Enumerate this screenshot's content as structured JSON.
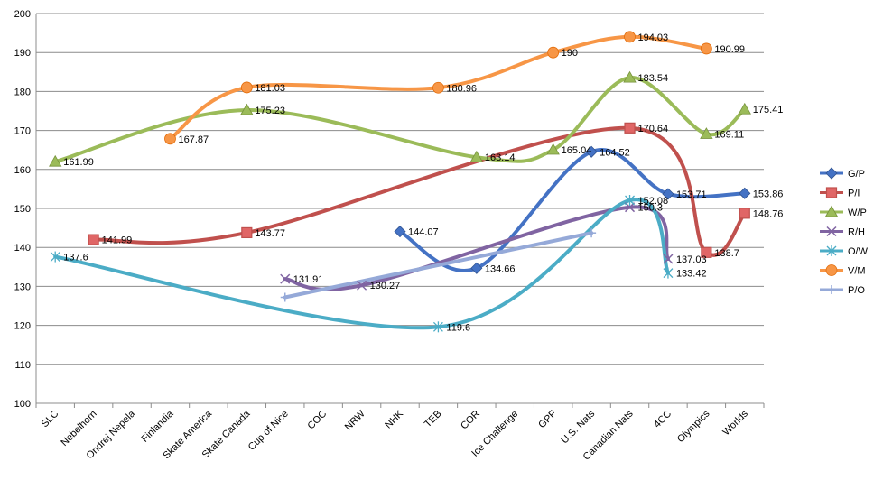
{
  "chart_data": {
    "type": "line",
    "categories": [
      "SLC",
      "Nebelhorn",
      "Ondrej Nepela",
      "Finlandia",
      "Skate America",
      "Skate Canada",
      "Cup of Nice",
      "COC",
      "NRW",
      "NHK",
      "TEB",
      "COR",
      "Ice Challenge",
      "GPF",
      "U.S. Nats",
      "Canadian Nats",
      "4CC",
      "Olympics",
      "Worlds"
    ],
    "ylim": [
      100,
      200
    ],
    "yticks": [
      100,
      110,
      120,
      130,
      140,
      150,
      160,
      170,
      180,
      190,
      200
    ],
    "grid": "horizontal",
    "legend_position": "right",
    "smooth": true,
    "series": [
      {
        "name": "G/P",
        "color": "#4472C4",
        "marker": "diamond",
        "values": [
          null,
          null,
          null,
          null,
          null,
          null,
          null,
          null,
          null,
          144.07,
          null,
          134.66,
          null,
          null,
          164.52,
          null,
          153.71,
          null,
          153.86
        ],
        "labels": [
          "144.07",
          "134.66",
          "164.52",
          "153.71",
          "153.86"
        ]
      },
      {
        "name": "P/I",
        "color": "#C0504D",
        "marker": "square",
        "values": [
          null,
          141.99,
          null,
          null,
          null,
          143.77,
          null,
          null,
          null,
          null,
          null,
          null,
          null,
          null,
          null,
          170.64,
          null,
          138.7,
          148.76
        ],
        "labels": [
          "141.99",
          "143.77",
          "170.64",
          "138.7",
          "148.76"
        ]
      },
      {
        "name": "W/P",
        "color": "#9BBB59",
        "marker": "triangle",
        "values": [
          161.99,
          null,
          null,
          null,
          null,
          175.23,
          null,
          null,
          null,
          null,
          null,
          163.14,
          null,
          165.04,
          null,
          183.54,
          null,
          169.11,
          175.41
        ],
        "labels": [
          "161.99",
          "175.23",
          "163.14",
          "165.04",
          "183.54",
          "169.11",
          "175.41"
        ]
      },
      {
        "name": "R/H",
        "color": "#8064A2",
        "marker": "x",
        "values": [
          null,
          null,
          null,
          null,
          null,
          null,
          131.91,
          null,
          130.27,
          null,
          null,
          null,
          null,
          null,
          null,
          150.3,
          137.03,
          null,
          null
        ],
        "labels": [
          "131.91",
          "130.27",
          "150.3",
          "137.03"
        ]
      },
      {
        "name": "O/W",
        "color": "#4BACC6",
        "marker": "star",
        "values": [
          137.6,
          null,
          null,
          null,
          null,
          null,
          null,
          null,
          null,
          null,
          119.6,
          null,
          null,
          null,
          null,
          152.08,
          133.42,
          null,
          null
        ],
        "labels": [
          "137.6",
          "119.6",
          "152.08",
          "133.42"
        ]
      },
      {
        "name": "V/M",
        "color": "#F79646",
        "marker": "circle",
        "values": [
          null,
          null,
          null,
          167.87,
          null,
          181.03,
          null,
          null,
          null,
          null,
          180.96,
          null,
          null,
          190,
          null,
          194.03,
          null,
          190.99,
          null
        ],
        "labels": [
          "167.87",
          "181.03",
          "180.96",
          "190",
          "194.03",
          "190.99"
        ]
      },
      {
        "name": "P/O",
        "color": "#95A9D8",
        "marker": "plus",
        "values": [
          null,
          null,
          null,
          null,
          null,
          null,
          127.2,
          null,
          null,
          null,
          null,
          null,
          null,
          null,
          143.7,
          null,
          null,
          null,
          null
        ],
        "labels": []
      }
    ]
  }
}
